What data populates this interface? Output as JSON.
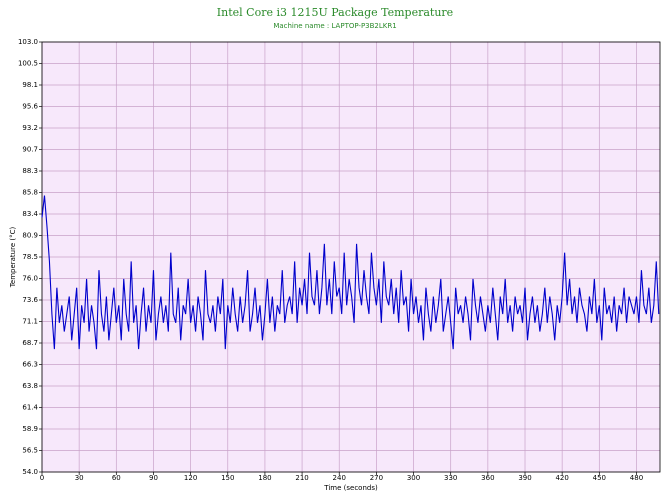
{
  "chart_data": {
    "type": "line",
    "title": "Intel Core i3 1215U Package Temperature",
    "subtitle": "Machine name : LAPTOP-P3B2LKR1",
    "x_label": "Time (seconds)",
    "y_label": "Temperature (°C)",
    "color": "#0000cc",
    "background": "#f7e8fb",
    "grid": true,
    "grid_color": "#c9a2c9",
    "xlim": [
      0,
      499
    ],
    "ylim": [
      54,
      103
    ],
    "xticks": [
      0,
      30,
      60,
      90,
      120,
      150,
      180,
      210,
      240,
      270,
      300,
      330,
      360,
      390,
      420,
      450,
      480
    ],
    "yticks": [
      {
        "value": 54,
        "label": "54.0"
      },
      {
        "value": 56.45,
        "label": "56.5"
      },
      58.9,
      {
        "value": 61.35,
        "label": "61.4"
      },
      63.8,
      {
        "value": 66.25,
        "label": "66.3"
      },
      68.7,
      {
        "value": 71.15,
        "label": "71.1"
      },
      73.6,
      {
        "value": 76.05,
        "label": "76.0"
      },
      78.5,
      {
        "value": 80.95,
        "label": "80.9"
      },
      83.4,
      {
        "value": 85.85,
        "label": "85.8"
      },
      88.3,
      {
        "value": 90.75,
        "label": "90.7"
      },
      93.2,
      {
        "value": 95.65,
        "label": "95.6"
      },
      98.1,
      {
        "value": 100.55,
        "label": "100.5"
      },
      {
        "value": 103,
        "label": "103.0"
      }
    ],
    "x": [
      0,
      2,
      4,
      6,
      8,
      10,
      12,
      14,
      16,
      18,
      20,
      22,
      24,
      26,
      28,
      30,
      32,
      34,
      36,
      38,
      40,
      42,
      44,
      46,
      48,
      50,
      52,
      54,
      56,
      58,
      60,
      62,
      64,
      66,
      68,
      70,
      72,
      74,
      76,
      78,
      80,
      82,
      84,
      86,
      88,
      90,
      92,
      94,
      96,
      98,
      100,
      102,
      104,
      106,
      108,
      110,
      112,
      114,
      116,
      118,
      120,
      122,
      124,
      126,
      128,
      130,
      132,
      134,
      136,
      138,
      140,
      142,
      144,
      146,
      148,
      150,
      152,
      154,
      156,
      158,
      160,
      162,
      164,
      166,
      168,
      170,
      172,
      174,
      176,
      178,
      180,
      182,
      184,
      186,
      188,
      190,
      192,
      194,
      196,
      198,
      200,
      202,
      204,
      206,
      208,
      210,
      212,
      214,
      216,
      218,
      220,
      222,
      224,
      226,
      228,
      230,
      232,
      234,
      236,
      238,
      240,
      242,
      244,
      246,
      248,
      250,
      252,
      254,
      256,
      258,
      260,
      262,
      264,
      266,
      268,
      270,
      272,
      274,
      276,
      278,
      280,
      282,
      284,
      286,
      288,
      290,
      292,
      294,
      296,
      298,
      300,
      302,
      304,
      306,
      308,
      310,
      312,
      314,
      316,
      318,
      320,
      322,
      324,
      326,
      328,
      330,
      332,
      334,
      336,
      338,
      340,
      342,
      344,
      346,
      348,
      350,
      352,
      354,
      356,
      358,
      360,
      362,
      364,
      366,
      368,
      370,
      372,
      374,
      376,
      378,
      380,
      382,
      384,
      386,
      388,
      390,
      392,
      394,
      396,
      398,
      400,
      402,
      404,
      406,
      408,
      410,
      412,
      414,
      416,
      418,
      420,
      422,
      424,
      426,
      428,
      430,
      432,
      434,
      436,
      438,
      440,
      442,
      444,
      446,
      448,
      450,
      452,
      454,
      456,
      458,
      460,
      462,
      464,
      466,
      468,
      470,
      472,
      474,
      476,
      478,
      480,
      482,
      484,
      486,
      488,
      490,
      492,
      494,
      496,
      498
    ],
    "values": [
      83,
      85.5,
      82,
      78,
      72,
      68,
      75,
      71,
      73,
      70,
      72,
      74,
      69,
      72,
      75,
      68,
      73,
      71,
      76,
      70,
      73,
      71,
      68,
      77,
      72,
      70,
      74,
      69,
      72,
      75,
      71,
      73,
      69,
      76,
      72,
      70,
      78,
      71,
      73,
      68,
      72,
      75,
      70,
      73,
      71,
      77,
      69,
      72,
      74,
      71,
      73,
      70,
      79,
      72,
      71,
      75,
      69,
      73,
      72,
      76,
      71,
      73,
      70,
      74,
      72,
      69,
      77,
      72,
      71,
      73,
      70,
      74,
      72,
      76,
      68,
      73,
      71,
      75,
      72,
      70,
      74,
      71,
      73,
      77,
      70,
      72,
      75,
      71,
      73,
      69,
      72,
      76,
      71,
      74,
      70,
      73,
      72,
      77,
      71,
      73,
      74,
      72,
      78,
      71,
      75,
      73,
      76,
      72,
      79,
      74,
      73,
      77,
      72,
      75,
      80,
      73,
      76,
      72,
      78,
      74,
      75,
      72,
      79,
      73,
      76,
      74,
      71,
      80,
      75,
      73,
      77,
      74,
      72,
      79,
      75,
      73,
      76,
      71,
      78,
      74,
      73,
      76,
      72,
      75,
      71,
      77,
      73,
      74,
      70,
      76,
      72,
      74,
      71,
      73,
      69,
      75,
      72,
      70,
      74,
      71,
      73,
      76,
      70,
      72,
      74,
      71,
      68,
      75,
      72,
      73,
      71,
      74,
      72,
      69,
      76,
      73,
      71,
      74,
      72,
      70,
      73,
      71,
      75,
      72,
      69,
      74,
      72,
      76,
      71,
      73,
      70,
      74,
      72,
      73,
      71,
      75,
      69,
      72,
      74,
      71,
      73,
      70,
      72,
      75,
      71,
      74,
      72,
      69,
      73,
      71,
      74,
      79,
      73,
      76,
      72,
      74,
      71,
      75,
      73,
      72,
      70,
      74,
      72,
      76,
      71,
      73,
      69,
      75,
      72,
      73,
      71,
      74,
      70,
      73,
      72,
      75,
      71,
      74,
      73,
      72,
      74,
      71,
      77,
      73,
      72,
      75,
      71,
      73,
      78,
      72
    ]
  }
}
